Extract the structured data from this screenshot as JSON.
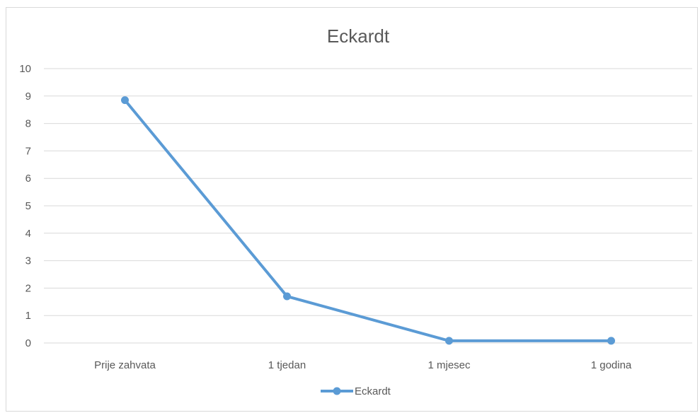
{
  "chart_data": {
    "type": "line",
    "title": "Eckardt",
    "xlabel": "",
    "ylabel": "",
    "categories": [
      "Prije zahvata",
      "1 tjedan",
      "1 mjesec",
      "1 godina"
    ],
    "series": [
      {
        "name": "Eckardt",
        "values": [
          8.85,
          1.7,
          0.08,
          0.08
        ]
      }
    ],
    "ylim": [
      0,
      10
    ],
    "yticks": [
      "0",
      "1",
      "2",
      "3",
      "4",
      "5",
      "6",
      "7",
      "8",
      "9",
      "10"
    ],
    "grid": true,
    "legend": "bottom",
    "colors": {
      "series": "#5b9bd5",
      "grid": "#d9d9d9",
      "text": "#595959",
      "title": "#595959"
    }
  }
}
